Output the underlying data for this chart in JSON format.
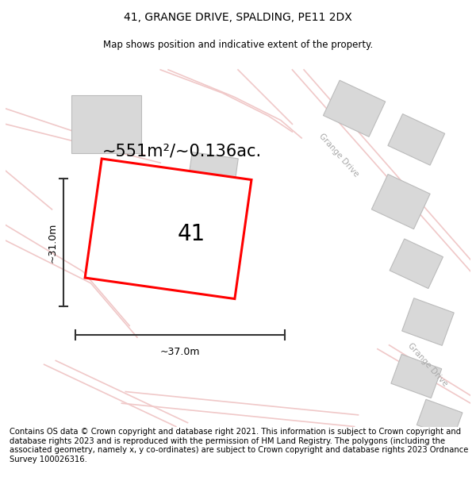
{
  "title": "41, GRANGE DRIVE, SPALDING, PE11 2DX",
  "subtitle": "Map shows position and indicative extent of the property.",
  "footer": "Contains OS data © Crown copyright and database right 2021. This information is subject to Crown copyright and database rights 2023 and is reproduced with the permission of HM Land Registry. The polygons (including the associated geometry, namely x, y co-ordinates) are subject to Crown copyright and database rights 2023 Ordnance Survey 100026316.",
  "area_label": "~551m²/~0.136ac.",
  "plot_number": "41",
  "width_label": "~37.0m",
  "height_label": "~31.0m",
  "map_bg": "#f7f7f7",
  "road_color": "#f0c8c8",
  "building_color": "#d8d8d8",
  "building_outline": "#bbbbbb",
  "plot_color": "#ff0000",
  "street_label_color": "#aaaaaa",
  "title_fontsize": 10,
  "subtitle_fontsize": 8.5,
  "footer_fontsize": 7.2,
  "area_fontsize": 15,
  "number_fontsize": 20,
  "measure_fontsize": 9
}
